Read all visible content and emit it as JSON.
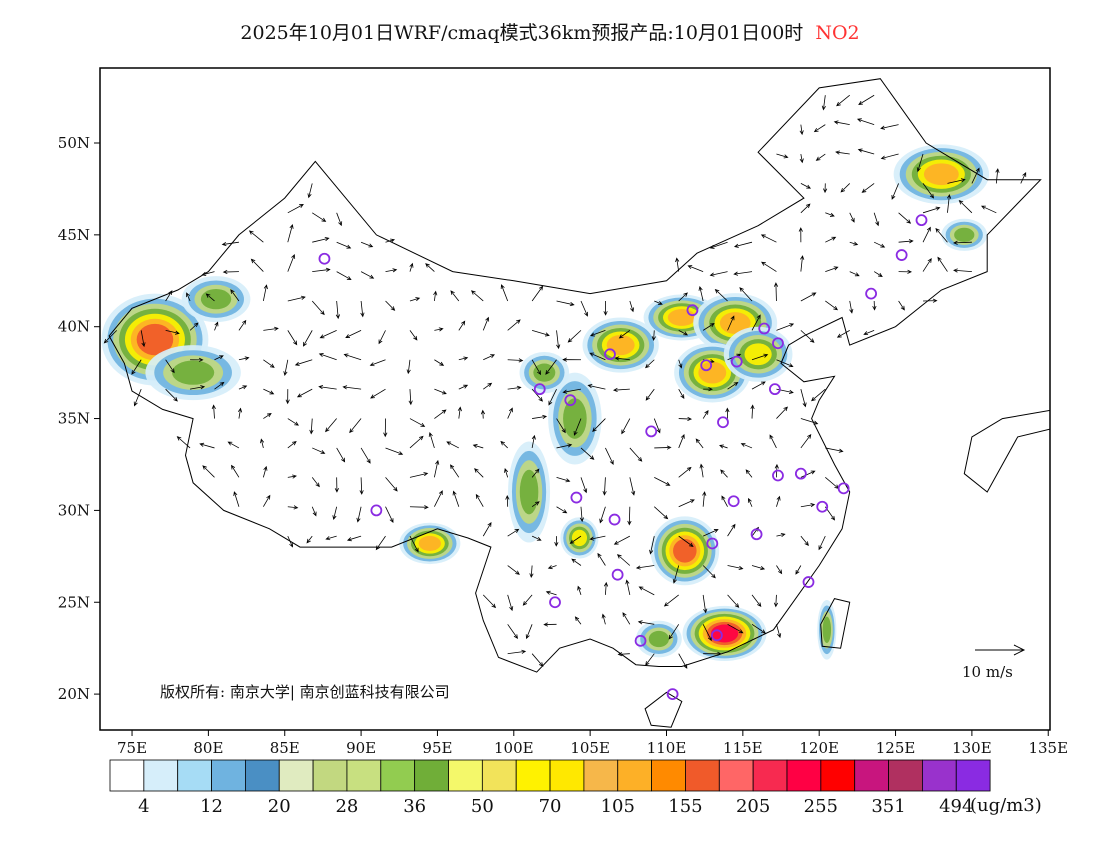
{
  "title": "2025年10月01日WRF/cmaq模式36km预报产品:10月01日00时",
  "species": "NO2",
  "copyright": "版权所有: 南京大学| 南京创蓝科技有限公司",
  "wind_legend": "10 m/s",
  "unit": "(ug/m3)",
  "axes": {
    "lon_ticks": [
      "75E",
      "80E",
      "85E",
      "90E",
      "95E",
      "100E",
      "105E",
      "110E",
      "115E",
      "120E",
      "125E",
      "130E",
      "135E"
    ],
    "lat_ticks": [
      "20N",
      "25N",
      "30N",
      "35N",
      "40N",
      "45N",
      "50N"
    ],
    "lon_range": [
      73,
      135
    ],
    "lat_range": [
      18,
      54
    ]
  },
  "colorbar": {
    "colors": [
      "#ffffff",
      "#d6eefa",
      "#a6dcf5",
      "#6fb3e0",
      "#4a8fc4",
      "#e0ebc0",
      "#c2d880",
      "#c8e080",
      "#92cc50",
      "#70ae38",
      "#f4f86a",
      "#f2e35a",
      "#fff200",
      "#ffe800",
      "#f6b74a",
      "#fdb027",
      "#ff8a00",
      "#f05a2a",
      "#ff6666",
      "#f72a50",
      "#ff0044",
      "#ff0000",
      "#c8157e",
      "#b03060",
      "#9932cc",
      "#8a2be2"
    ],
    "labels": [
      "4",
      "12",
      "20",
      "28",
      "36",
      "50",
      "70",
      "105",
      "155",
      "205",
      "255",
      "351",
      "494"
    ]
  },
  "stations": [
    [
      87.6,
      43.7
    ],
    [
      91.0,
      30.0
    ],
    [
      101.7,
      36.6
    ],
    [
      103.7,
      36.0
    ],
    [
      106.3,
      38.5
    ],
    [
      111.7,
      40.9
    ],
    [
      112.6,
      37.9
    ],
    [
      114.6,
      38.1
    ],
    [
      116.4,
      39.9
    ],
    [
      117.3,
      39.1
    ],
    [
      117.1,
      36.6
    ],
    [
      113.7,
      34.8
    ],
    [
      109.0,
      34.3
    ],
    [
      104.1,
      30.7
    ],
    [
      106.6,
      29.5
    ],
    [
      106.8,
      26.5
    ],
    [
      102.7,
      25.0
    ],
    [
      108.3,
      22.9
    ],
    [
      110.4,
      20.0
    ],
    [
      113.0,
      28.2
    ],
    [
      114.4,
      30.5
    ],
    [
      115.9,
      28.7
    ],
    [
      117.3,
      31.9
    ],
    [
      118.8,
      32.0
    ],
    [
      120.2,
      30.2
    ],
    [
      121.6,
      31.2
    ],
    [
      119.3,
      26.1
    ],
    [
      113.3,
      23.2
    ],
    [
      126.7,
      45.8
    ],
    [
      125.4,
      43.9
    ],
    [
      123.4,
      41.8
    ]
  ],
  "hotspots": [
    {
      "lon": 76.5,
      "lat": 39.3,
      "rx": 2.8,
      "ry": 2.0,
      "level": 17
    },
    {
      "lon": 80.5,
      "lat": 41.5,
      "rx": 1.8,
      "ry": 1.0,
      "level": 9
    },
    {
      "lon": 79,
      "lat": 37.5,
      "rx": 2.5,
      "ry": 1.2,
      "level": 9
    },
    {
      "lon": 94.5,
      "lat": 28.2,
      "rx": 1.6,
      "ry": 0.9,
      "level": 16
    },
    {
      "lon": 128,
      "lat": 48.3,
      "rx": 2.5,
      "ry": 1.3,
      "level": 16
    },
    {
      "lon": 129.5,
      "lat": 45,
      "rx": 1.2,
      "ry": 0.7,
      "level": 11
    },
    {
      "lon": 107,
      "lat": 39,
      "rx": 2,
      "ry": 1.2,
      "level": 16
    },
    {
      "lon": 111,
      "lat": 40.5,
      "rx": 2,
      "ry": 1.0,
      "level": 15
    },
    {
      "lon": 114.5,
      "lat": 40.2,
      "rx": 2.2,
      "ry": 1.3,
      "level": 16
    },
    {
      "lon": 113,
      "lat": 37.5,
      "rx": 2,
      "ry": 1.3,
      "level": 15
    },
    {
      "lon": 116,
      "lat": 38.5,
      "rx": 1.8,
      "ry": 1.2,
      "level": 13
    },
    {
      "lon": 104,
      "lat": 35,
      "rx": 1.4,
      "ry": 2.0,
      "level": 11
    },
    {
      "lon": 101,
      "lat": 31,
      "rx": 1.1,
      "ry": 2.2,
      "level": 9
    },
    {
      "lon": 104.3,
      "lat": 28.5,
      "rx": 1.0,
      "ry": 0.9,
      "level": 12
    },
    {
      "lon": 111.2,
      "lat": 27.8,
      "rx": 1.8,
      "ry": 1.5,
      "level": 17
    },
    {
      "lon": 113.8,
      "lat": 23.3,
      "rx": 2.2,
      "ry": 1.2,
      "level": 20
    },
    {
      "lon": 109.5,
      "lat": 23,
      "rx": 1.2,
      "ry": 0.8,
      "level": 9
    },
    {
      "lon": 120.5,
      "lat": 23.5,
      "rx": 0.5,
      "ry": 1.3,
      "level": 9
    },
    {
      "lon": 102,
      "lat": 37.5,
      "rx": 1.3,
      "ry": 0.9,
      "level": 11
    }
  ]
}
